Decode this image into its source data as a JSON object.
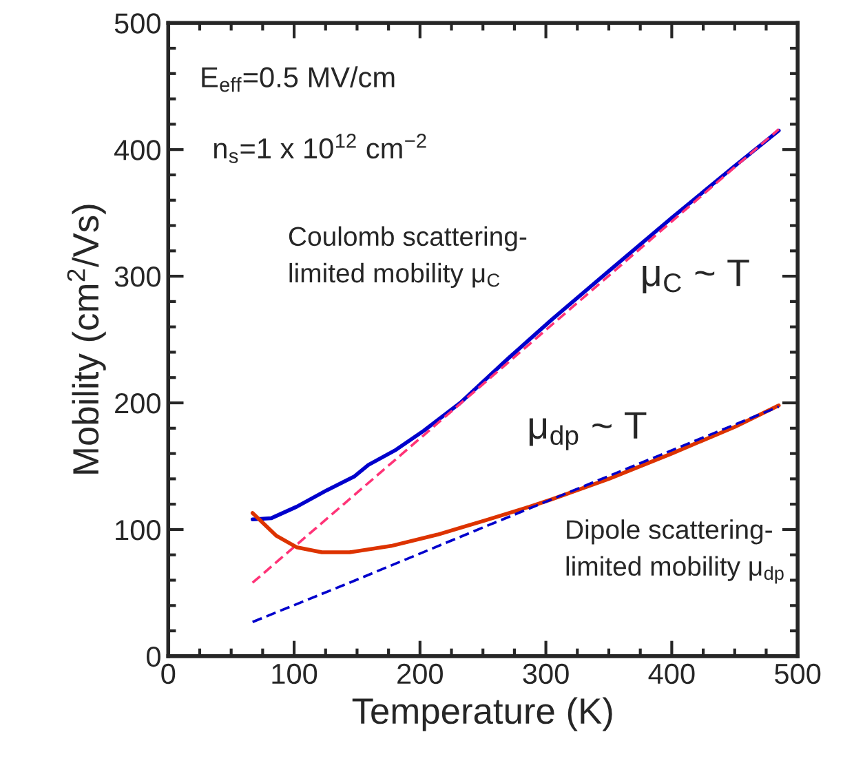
{
  "chart_data": {
    "type": "line",
    "xlabel": "Temperature (K)",
    "ylabel": "Mobility (cm$^{2}$/Vs)",
    "xlim": [
      0,
      500
    ],
    "ylim": [
      0,
      500
    ],
    "xticks": [
      0,
      100,
      200,
      300,
      400,
      500
    ],
    "yticks": [
      0,
      100,
      200,
      300,
      400,
      500
    ],
    "grid": false,
    "legend": false,
    "marker": "none",
    "annotations": [
      "E$_{eff}$=0.5 MV/cm",
      "n$_{s}$=1 x 10$^{12}$ cm$^{−2}$",
      "Coulomb scattering-\nlimited mobility μ$_{C}$",
      "μ$_{C}$ ~ T",
      "μ$_{dp}$ ~ T",
      "Dipole scattering-\nlimited mobility μ$_{dp}$"
    ],
    "series": [
      {
        "color": "#0000cc",
        "line_style": "solid",
        "x": [
          67,
          82,
          102,
          126,
          148,
          159,
          181,
          203,
          232,
          270,
          305,
          350,
          400,
          450,
          485
        ],
        "values": [
          108,
          109,
          118,
          131,
          142,
          151,
          163,
          178,
          200,
          235,
          266,
          304,
          346,
          387,
          415
        ]
      },
      {
        "color": "#ff3377",
        "line_style": "dashed",
        "x": [
          67,
          485
        ],
        "values": [
          58,
          416
        ]
      },
      {
        "color": "#dd3300",
        "line_style": "solid",
        "x": [
          67,
          86,
          102,
          122,
          144,
          177,
          214,
          251,
          287,
          305,
          350,
          400,
          450,
          485
        ],
        "values": [
          113,
          95,
          86,
          82,
          82,
          87,
          96,
          107,
          118,
          124,
          140,
          160,
          181,
          198
        ]
      },
      {
        "color": "#0000cc",
        "line_style": "dashed",
        "x": [
          67,
          144,
          251,
          305,
          485
        ],
        "values": [
          27,
          58,
          102,
          124,
          197
        ]
      }
    ]
  }
}
